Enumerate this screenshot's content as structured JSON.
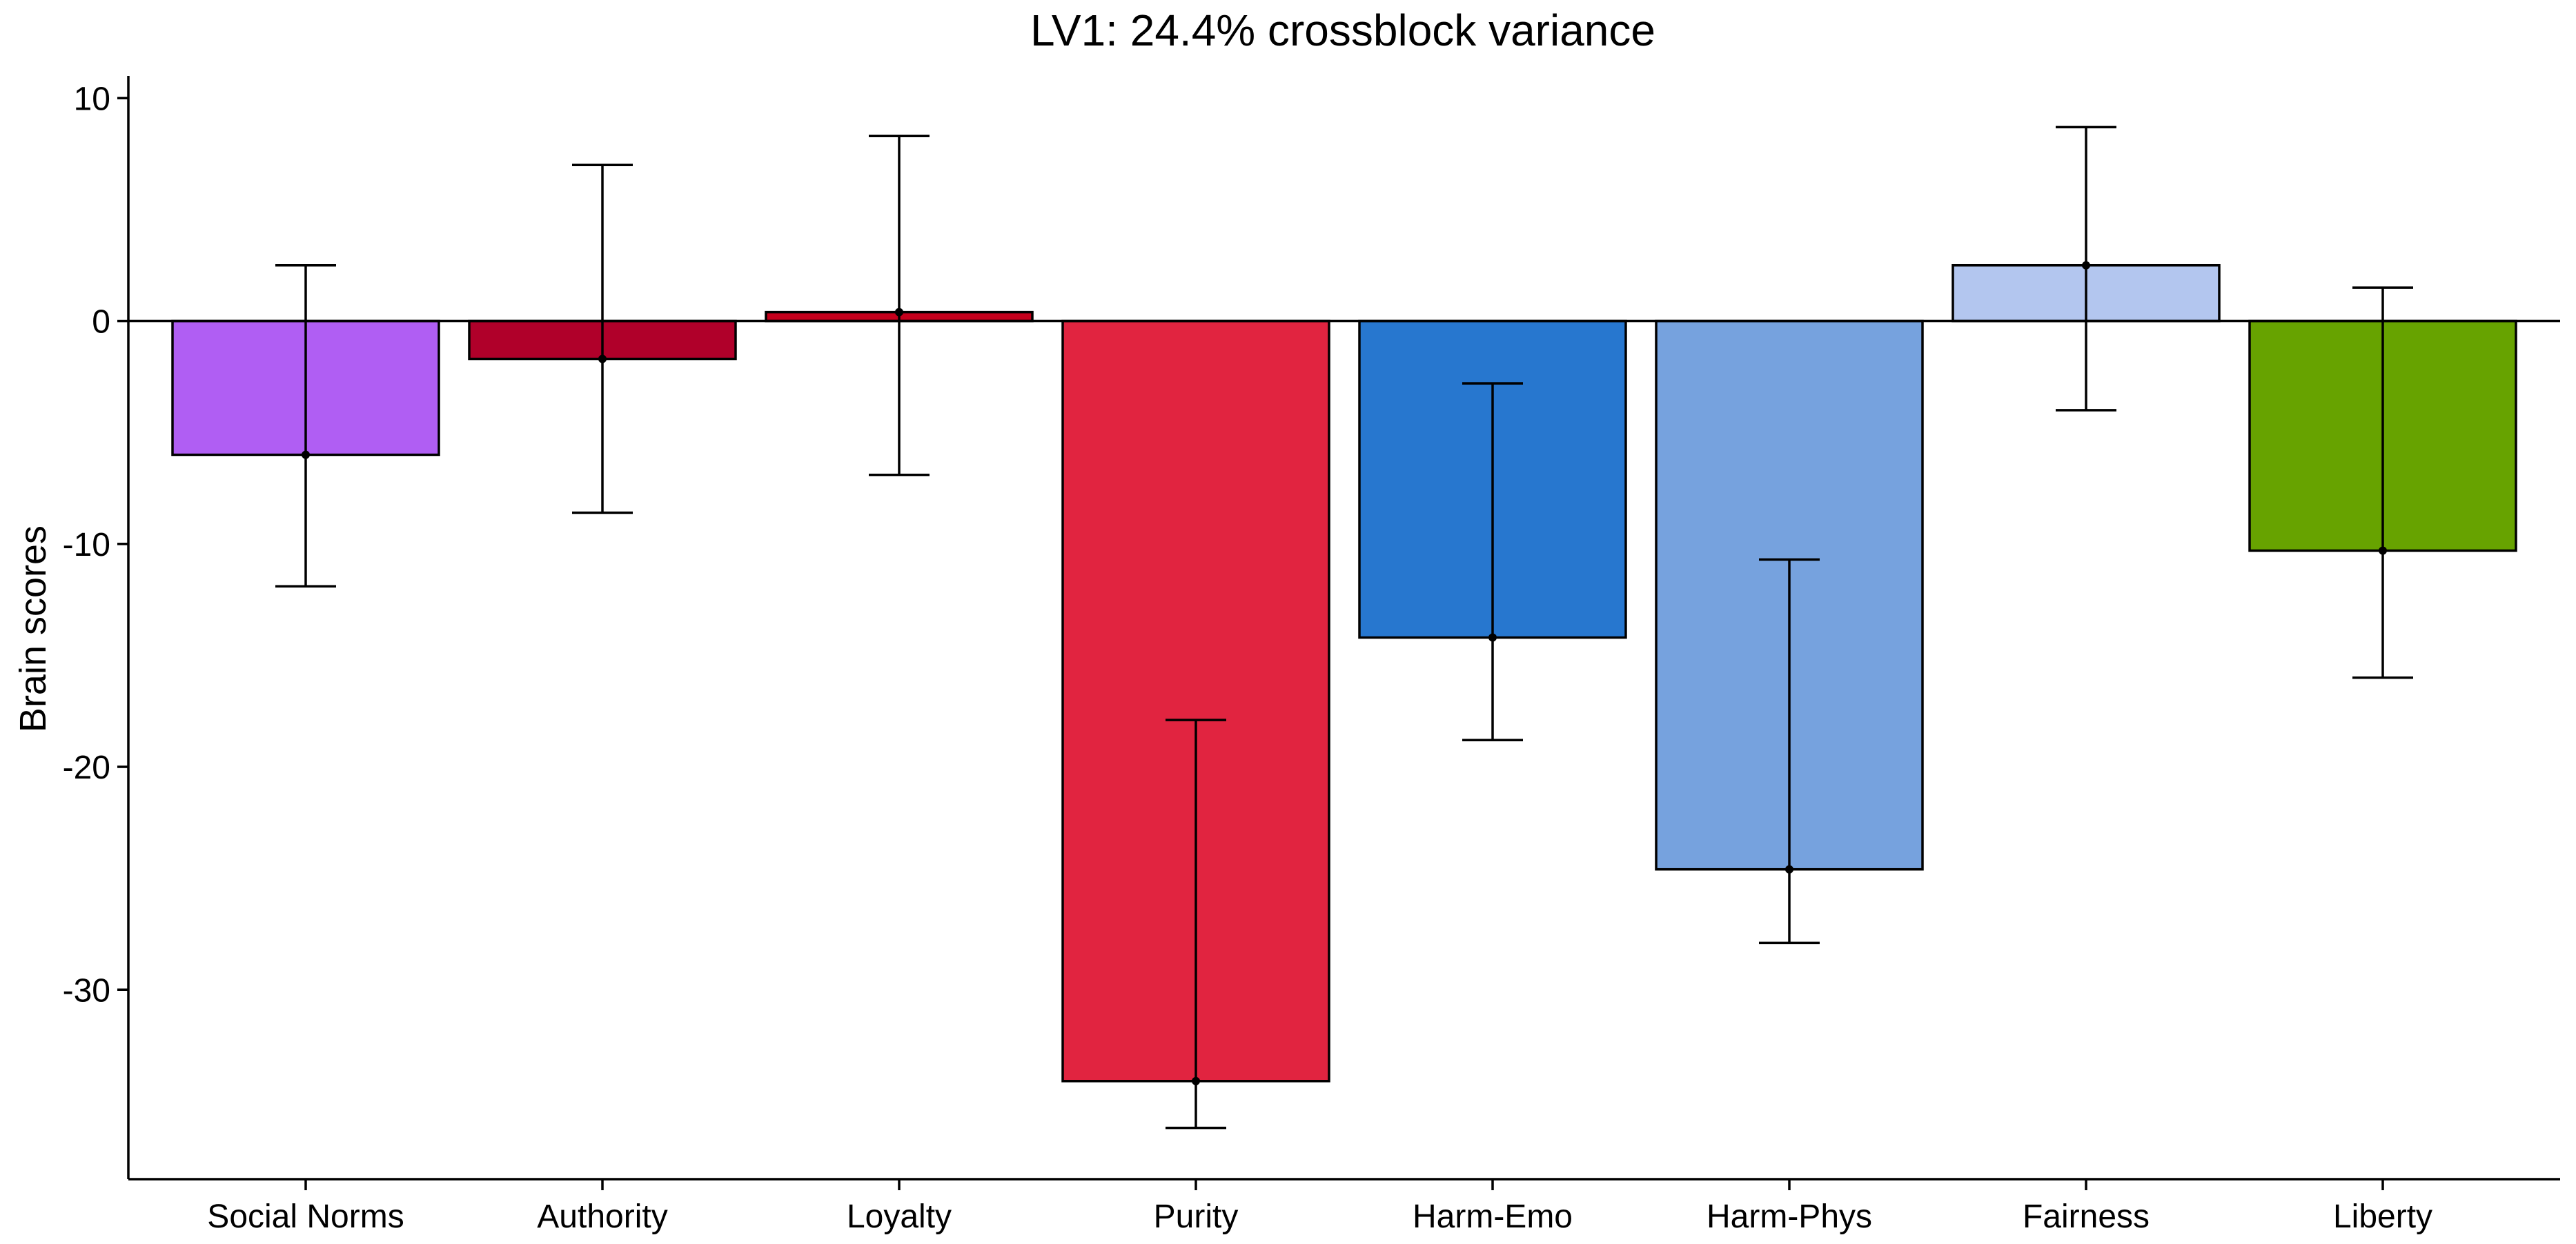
{
  "chart_data": {
    "type": "bar",
    "title": "LV1: 24.4% crossblock variance",
    "xlabel": "",
    "ylabel": "Brain scores",
    "ylim": [
      -38.5,
      11
    ],
    "yticks": [
      10,
      0,
      -10,
      -20,
      -30
    ],
    "ytick_labels": [
      "10",
      "0",
      "-10",
      "-20",
      "-30"
    ],
    "grid": false,
    "legend": "none",
    "error_bars": true,
    "categories": [
      "Social Norms",
      "Authority",
      "Loyalty",
      "Purity",
      "Harm-Emo",
      "Harm-Phys",
      "Fairness",
      "Liberty"
    ],
    "values": [
      -6.0,
      -1.7,
      0.4,
      -34.1,
      -14.2,
      -24.6,
      2.5,
      -10.3
    ],
    "error_low": [
      -11.9,
      -8.6,
      -6.9,
      -36.2,
      -18.8,
      -27.9,
      -4.0,
      -16.0
    ],
    "error_high": [
      2.5,
      7.0,
      8.3,
      -17.9,
      -2.8,
      -10.7,
      8.7,
      1.5
    ],
    "colors": [
      "#b05ef3",
      "#b0002a",
      "#c5001c",
      "#e12440",
      "#2777cf",
      "#76a2de",
      "#b3c6ef",
      "#67a300"
    ]
  }
}
